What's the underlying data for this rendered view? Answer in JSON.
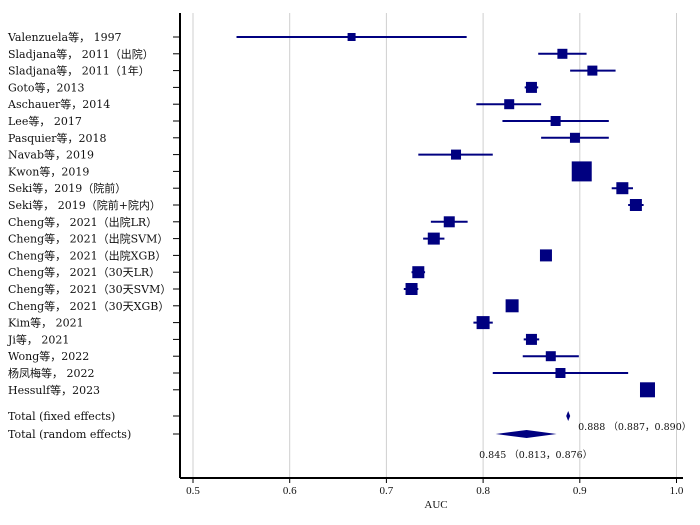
{
  "chart_data": {
    "type": "forest",
    "xlabel": "AUC",
    "xlim": [
      0.49,
      1.01
    ],
    "xticks": [
      0.5,
      0.6,
      0.7,
      0.8,
      0.9,
      1.0
    ],
    "xtick_labels": [
      "0.5",
      "0.6",
      "0.7",
      "0.8",
      "0.9",
      "1.0"
    ],
    "grid": "vertical",
    "colors": {
      "marker": "#000080",
      "grid": "#cfcfcf",
      "axis": "#000000"
    },
    "studies": [
      {
        "label": "Valenzuela等， 1997",
        "auc": 0.664,
        "lower": 0.545,
        "upper": 0.783,
        "weight": 1
      },
      {
        "label": "Sladjana等， 2011（出院）",
        "auc": 0.882,
        "lower": 0.857,
        "upper": 0.907,
        "weight": 2
      },
      {
        "label": "Sladjana等， 2011（1年）",
        "auc": 0.913,
        "lower": 0.89,
        "upper": 0.937,
        "weight": 2
      },
      {
        "label": "Goto等，2013",
        "auc": 0.85,
        "lower": 0.843,
        "upper": 0.857,
        "weight": 2.5
      },
      {
        "label": "Aschauer等，2014",
        "auc": 0.827,
        "lower": 0.793,
        "upper": 0.86,
        "weight": 2
      },
      {
        "label": "Lee等， 2017",
        "auc": 0.875,
        "lower": 0.82,
        "upper": 0.93,
        "weight": 2
      },
      {
        "label": "Pasquier等，2018",
        "auc": 0.895,
        "lower": 0.86,
        "upper": 0.93,
        "weight": 2
      },
      {
        "label": "Navab等，2019",
        "auc": 0.772,
        "lower": 0.733,
        "upper": 0.81,
        "weight": 2
      },
      {
        "label": "Kwon等，2019",
        "auc": 0.902,
        "lower": 0.902,
        "upper": 0.902,
        "weight": 7
      },
      {
        "label": "Seki等，2019（院前）",
        "auc": 0.944,
        "lower": 0.933,
        "upper": 0.955,
        "weight": 3
      },
      {
        "label": "Seki等， 2019（院前+院内）",
        "auc": 0.958,
        "lower": 0.95,
        "upper": 0.966,
        "weight": 3
      },
      {
        "label": "Cheng等， 2021（出院LR）",
        "auc": 0.765,
        "lower": 0.746,
        "upper": 0.784,
        "weight": 2.5
      },
      {
        "label": "Cheng等， 2021（出院SVM）",
        "auc": 0.749,
        "lower": 0.738,
        "upper": 0.76,
        "weight": 3
      },
      {
        "label": "Cheng等， 2021（出院XGB）",
        "auc": 0.865,
        "lower": 0.865,
        "upper": 0.865,
        "weight": 3
      },
      {
        "label": "Cheng等， 2021（30天LR）",
        "auc": 0.733,
        "lower": 0.726,
        "upper": 0.74,
        "weight": 3
      },
      {
        "label": "Cheng等， 2021（30天SVM）",
        "auc": 0.726,
        "lower": 0.718,
        "upper": 0.733,
        "weight": 3
      },
      {
        "label": "Cheng等， 2021（30天XGB）",
        "auc": 0.83,
        "lower": 0.83,
        "upper": 0.83,
        "weight": 3.5
      },
      {
        "label": "Kim等， 2021",
        "auc": 0.8,
        "lower": 0.79,
        "upper": 0.81,
        "weight": 3.5
      },
      {
        "label": "Ji等， 2021",
        "auc": 0.85,
        "lower": 0.842,
        "upper": 0.858,
        "weight": 2.5
      },
      {
        "label": "Wong等，2022",
        "auc": 0.87,
        "lower": 0.841,
        "upper": 0.899,
        "weight": 2
      },
      {
        "label": "杨凤梅等， 2022",
        "auc": 0.88,
        "lower": 0.81,
        "upper": 0.95,
        "weight": 2
      },
      {
        "label": "Hessulf等，2023",
        "auc": 0.97,
        "lower": 0.97,
        "upper": 0.97,
        "weight": 4.5
      }
    ],
    "pooled": [
      {
        "label": "Total (fixed effects)",
        "auc": 0.888,
        "lower": 0.887,
        "upper": 0.89,
        "text": "0.888 （0.887，0.890）"
      },
      {
        "label": "Total (random effects)",
        "auc": 0.845,
        "lower": 0.813,
        "upper": 0.876,
        "text": "0.845 （0.813，0.876）"
      }
    ]
  }
}
